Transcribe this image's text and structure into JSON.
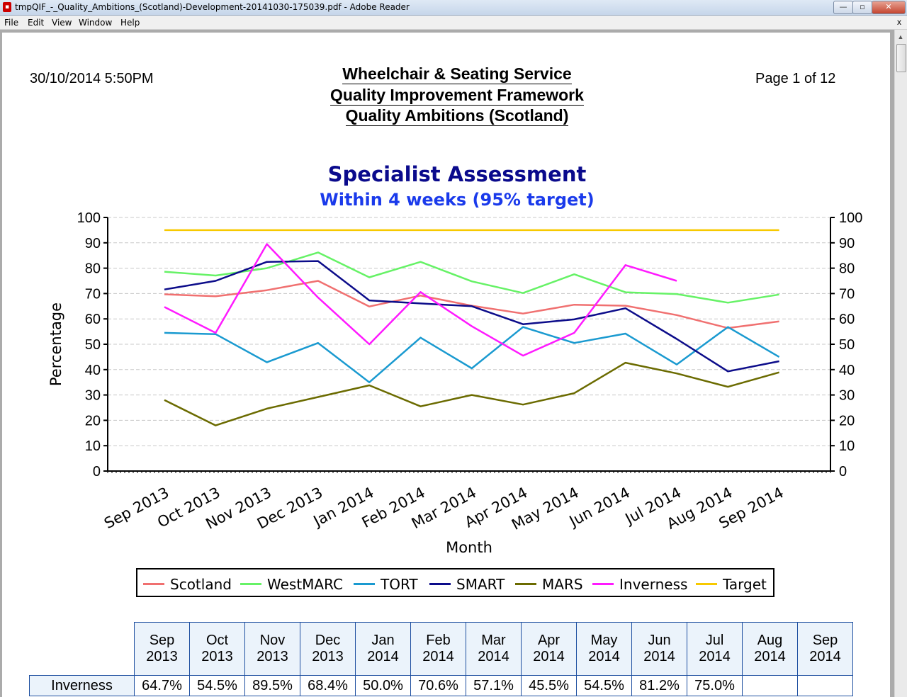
{
  "window": {
    "title": "tmpQIF_-_Quality_Ambitions_(Scotland)-Development-20141030-175039.pdf - Adobe Reader",
    "app_icon": "pdf-icon",
    "minimize_glyph": "—",
    "maximize_glyph": "▫",
    "close_glyph": "✕"
  },
  "menu": {
    "file": "File",
    "edit": "Edit",
    "view": "View",
    "window": "Window",
    "help": "Help",
    "close_glyph": "x"
  },
  "report": {
    "date": "30/10/2014 5:50PM",
    "page": "Page 1 of 12",
    "title_line1": "Wheelchair & Seating Service",
    "title_line2": "Quality Improvement Framework",
    "title_line3": "Quality Ambitions (Scotland)"
  },
  "chart_data": {
    "type": "line",
    "title": "Specialist Assessment",
    "subtitle": "Within 4 weeks (95% target)",
    "xlabel": "Month",
    "ylabel": "Percentage",
    "ylim": [
      0,
      100
    ],
    "yticks": [
      0,
      10,
      20,
      30,
      40,
      50,
      60,
      70,
      80,
      90,
      100
    ],
    "grid": true,
    "legend_position": "bottom",
    "categories": [
      "Sep 2013",
      "Oct 2013",
      "Nov 2013",
      "Dec 2013",
      "Jan 2014",
      "Feb 2014",
      "Mar 2014",
      "Apr 2014",
      "May 2014",
      "Jun 2014",
      "Jul 2014",
      "Aug 2014",
      "Sep 2014"
    ],
    "series": [
      {
        "name": "Scotland",
        "color": "#f07070",
        "values": [
          69.7,
          68.9,
          71.3,
          75.0,
          64.9,
          69.2,
          65.2,
          62.1,
          65.6,
          65.2,
          61.5,
          56.4,
          59.0
        ]
      },
      {
        "name": "WestMARC",
        "color": "#66f266",
        "values": [
          78.6,
          77.1,
          80.0,
          86.2,
          76.4,
          82.5,
          74.8,
          70.2,
          77.6,
          70.5,
          69.8,
          66.4,
          69.6
        ]
      },
      {
        "name": "TORT",
        "color": "#1a9ad0",
        "values": [
          54.5,
          54.0,
          42.9,
          50.5,
          35.0,
          52.6,
          40.5,
          56.8,
          50.5,
          54.2,
          42.0,
          56.8,
          45.0
        ]
      },
      {
        "name": "SMART",
        "color": "#0c0c8a",
        "values": [
          71.6,
          75.0,
          82.5,
          82.8,
          67.3,
          66.1,
          65.0,
          57.9,
          59.8,
          64.2,
          52.1,
          39.3,
          43.3
        ]
      },
      {
        "name": "MARS",
        "color": "#6b6b00",
        "values": [
          28.0,
          18.0,
          24.6,
          29.2,
          33.8,
          25.5,
          30.0,
          26.2,
          30.7,
          42.7,
          38.5,
          33.2,
          38.9
        ]
      },
      {
        "name": "Inverness",
        "color": "#ff1aff",
        "values": [
          64.7,
          54.5,
          89.5,
          68.4,
          50.0,
          70.6,
          57.1,
          45.5,
          54.5,
          81.2,
          75.0,
          null,
          null
        ]
      },
      {
        "name": "Target",
        "color": "#f7c900",
        "values": [
          95,
          95,
          95,
          95,
          95,
          95,
          95,
          95,
          95,
          95,
          95,
          95,
          95
        ]
      }
    ]
  },
  "table": {
    "headers": [
      [
        "Sep",
        "2013"
      ],
      [
        "Oct",
        "2013"
      ],
      [
        "Nov",
        "2013"
      ],
      [
        "Dec",
        "2013"
      ],
      [
        "Jan",
        "2014"
      ],
      [
        "Feb",
        "2014"
      ],
      [
        "Mar",
        "2014"
      ],
      [
        "Apr",
        "2014"
      ],
      [
        "May",
        "2014"
      ],
      [
        "Jun",
        "2014"
      ],
      [
        "Jul",
        "2014"
      ],
      [
        "Aug",
        "2014"
      ],
      [
        "Sep",
        "2014"
      ]
    ],
    "rows": [
      {
        "label": "Inverness",
        "cells": [
          "64.7%",
          "54.5%",
          "89.5%",
          "68.4%",
          "50.0%",
          "70.6%",
          "57.1%",
          "45.5%",
          "54.5%",
          "81.2%",
          "75.0%",
          "",
          ""
        ]
      }
    ]
  }
}
